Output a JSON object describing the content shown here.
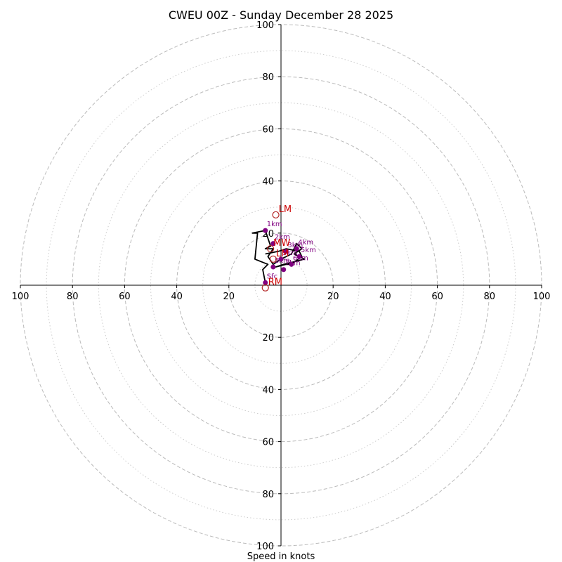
{
  "chart_data": {
    "type": "scatter",
    "subtype": "hodograph",
    "title": "CWEU 00Z - Sunday December 28 2025",
    "xlabel": "Speed in knots",
    "ylabel": "",
    "xlim": [
      -100,
      100
    ],
    "ylim": [
      -100,
      100
    ],
    "major_rings": [
      20,
      40,
      60,
      80,
      100
    ],
    "minor_rings": [
      10,
      30,
      50,
      70,
      90
    ],
    "x_tick_labels": [
      "100",
      "80",
      "60",
      "40",
      "20",
      "20",
      "40",
      "60",
      "80",
      "100"
    ],
    "y_tick_labels_upper": [
      "20",
      "40",
      "60",
      "80",
      "100"
    ],
    "y_tick_labels_lower": [
      "20",
      "40",
      "60",
      "80",
      "100"
    ],
    "colors": {
      "trace": "#000000",
      "height_markers": "#800080",
      "motion_markers": "#b22222",
      "major_grid": "#bbbbbb",
      "minor_grid": "#cccccc"
    },
    "series": [
      {
        "values_uv": [
          [
            -6,
            1
          ],
          [
            -7,
            6
          ],
          [
            -5,
            8
          ],
          [
            -10,
            10
          ],
          [
            -9,
            20
          ],
          [
            -11,
            20
          ],
          [
            -6,
            21
          ],
          [
            -4,
            15
          ],
          [
            -6,
            14
          ],
          [
            -3,
            14
          ],
          [
            -5,
            11
          ],
          [
            -3,
            8
          ],
          [
            0,
            10
          ],
          [
            4,
            12
          ],
          [
            6,
            16
          ],
          [
            8,
            14
          ],
          [
            5,
            12
          ],
          [
            9,
            10
          ],
          [
            5,
            9
          ],
          [
            1,
            8
          ],
          [
            -2,
            7
          ],
          [
            2,
            8
          ],
          [
            4,
            8
          ],
          [
            8,
            11
          ],
          [
            7,
            13
          ],
          [
            2,
            14
          ],
          [
            -1,
            13
          ],
          [
            -6,
            12
          ]
        ]
      }
    ],
    "height_markers": [
      {
        "label": "Sfc",
        "u": -6,
        "v": 1
      },
      {
        "label": "1km",
        "u": -6,
        "v": 21
      },
      {
        "label": "2km",
        "u": -3,
        "v": 16
      },
      {
        "label": "3km",
        "u": 2,
        "v": 13
      },
      {
        "label": "4km",
        "u": 6,
        "v": 14
      },
      {
        "label": "5km",
        "u": 7,
        "v": 11
      },
      {
        "label": "6km",
        "u": 4,
        "v": 8
      },
      {
        "label": "7km",
        "u": 1,
        "v": 6
      },
      {
        "label": "8km",
        "u": -3,
        "v": 7
      },
      {
        "label": "9km",
        "u": 0,
        "v": 10
      }
    ],
    "storm_motion": [
      {
        "label": "LM",
        "u": -2,
        "v": 27
      },
      {
        "label": "RM",
        "u": -6,
        "v": -1
      },
      {
        "label": "MW",
        "u": -4,
        "v": 14
      },
      {
        "label": "LM",
        "u": -3,
        "v": 10
      }
    ]
  }
}
